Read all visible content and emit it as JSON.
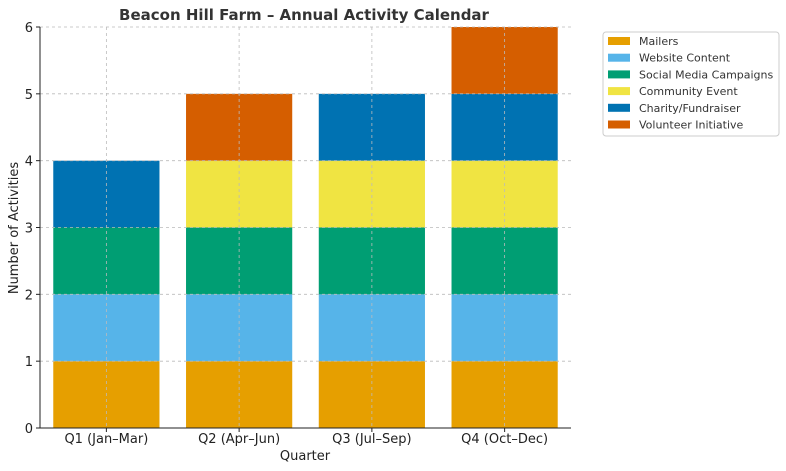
{
  "chart_data": {
    "type": "bar",
    "stacked": true,
    "title": "Beacon Hill Farm – Annual Activity Calendar",
    "xlabel": "Quarter",
    "ylabel": "Number of Activities",
    "ylim": [
      0,
      6
    ],
    "yticks": [
      0,
      1,
      2,
      3,
      4,
      5,
      6
    ],
    "grid": true,
    "legend_position": "outside-top-right",
    "categories": [
      "Q1 (Jan–Mar)",
      "Q2 (Apr–Jun)",
      "Q3 (Jul–Sep)",
      "Q4 (Oct–Dec)"
    ],
    "series": [
      {
        "name": "Mailers",
        "color": "#E69F00",
        "values": [
          1,
          1,
          1,
          1
        ]
      },
      {
        "name": "Website Content",
        "color": "#56B4E9",
        "values": [
          1,
          1,
          1,
          1
        ]
      },
      {
        "name": "Social Media Campaigns",
        "color": "#009E73",
        "values": [
          1,
          1,
          1,
          1
        ]
      },
      {
        "name": "Community Event",
        "color": "#F0E442",
        "values": [
          0,
          1,
          1,
          1
        ]
      },
      {
        "name": "Charity/Fundraiser",
        "color": "#0072B2",
        "values": [
          1,
          0,
          1,
          1
        ]
      },
      {
        "name": "Volunteer Initiative",
        "color": "#D55E00",
        "values": [
          0,
          1,
          0,
          1
        ]
      }
    ]
  }
}
